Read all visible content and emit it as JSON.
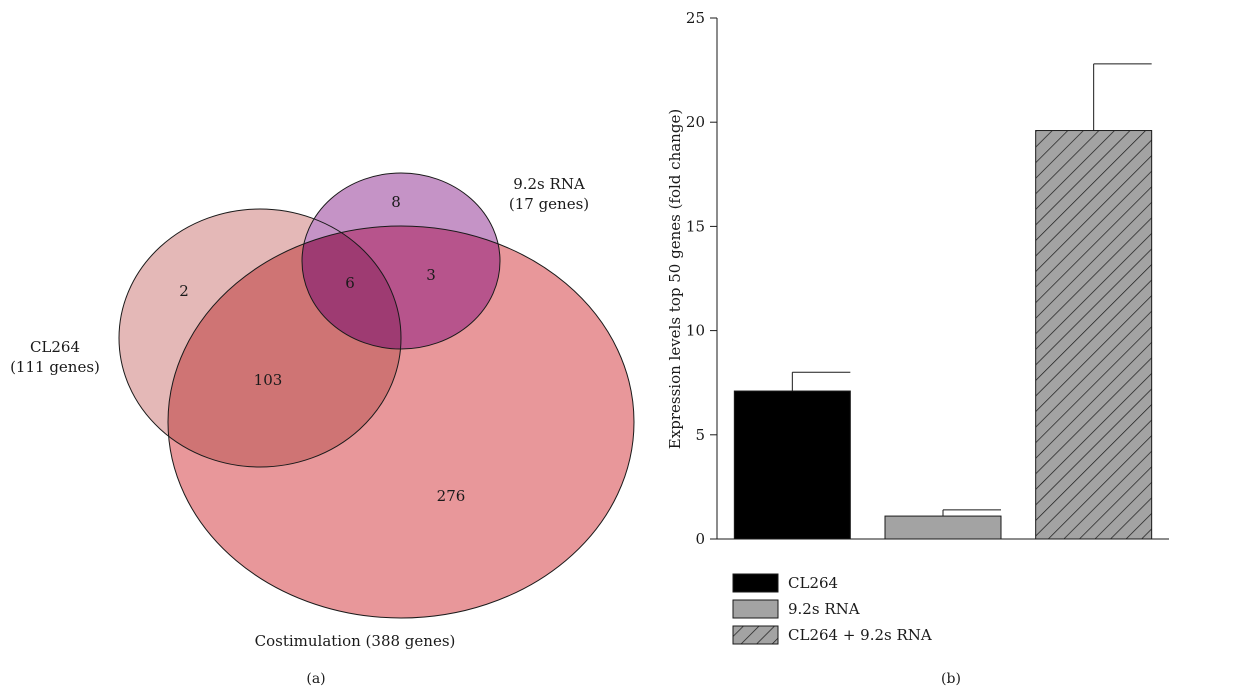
{
  "colors": {
    "costimulation": "#e8979a",
    "cl264": "#e4b8b7",
    "cl264_costim": "#cf7474",
    "rna": "#c593c6",
    "rna_costim": "#b7548c",
    "triple": "#9e3b72",
    "bar_cl264": "#000000",
    "bar_rna": "#a3a3a3",
    "bar_combined": "#a3a3a3"
  },
  "panel_a": {
    "tag": "(a)",
    "sets": {
      "cl264_name": "CL264",
      "cl264_count": "(111 genes)",
      "rna_name": "9.2s RNA",
      "rna_count": "(17 genes)",
      "costim": "Costimulation (388 genes)"
    },
    "regions": {
      "cl264_only": "2",
      "cl264_costim": "103",
      "costim_only": "276",
      "rna_only": "8",
      "rna_costim": "3",
      "all_three": "6"
    }
  },
  "chart_data": {
    "type": "bar",
    "panel_tag": "(b)",
    "categories": [
      "CL264",
      "9.2s RNA",
      "CL264 + 9.2s RNA"
    ],
    "values": [
      7.1,
      1.1,
      19.6
    ],
    "errors": [
      0.9,
      0.3,
      3.2
    ],
    "ylabel": "Expression levels top 50 genes (fold change)",
    "xlabel": "",
    "ylim": [
      0,
      25
    ],
    "yticks": [
      "0",
      "5",
      "10",
      "15",
      "20",
      "25"
    ],
    "legend": [
      "CL264",
      "9.2s RNA",
      "CL264 + 9.2s RNA"
    ],
    "legend_position": "bottom-left",
    "fills": [
      "solid black",
      "solid gray",
      "gray with diagonal hatch"
    ],
    "grid": false
  }
}
